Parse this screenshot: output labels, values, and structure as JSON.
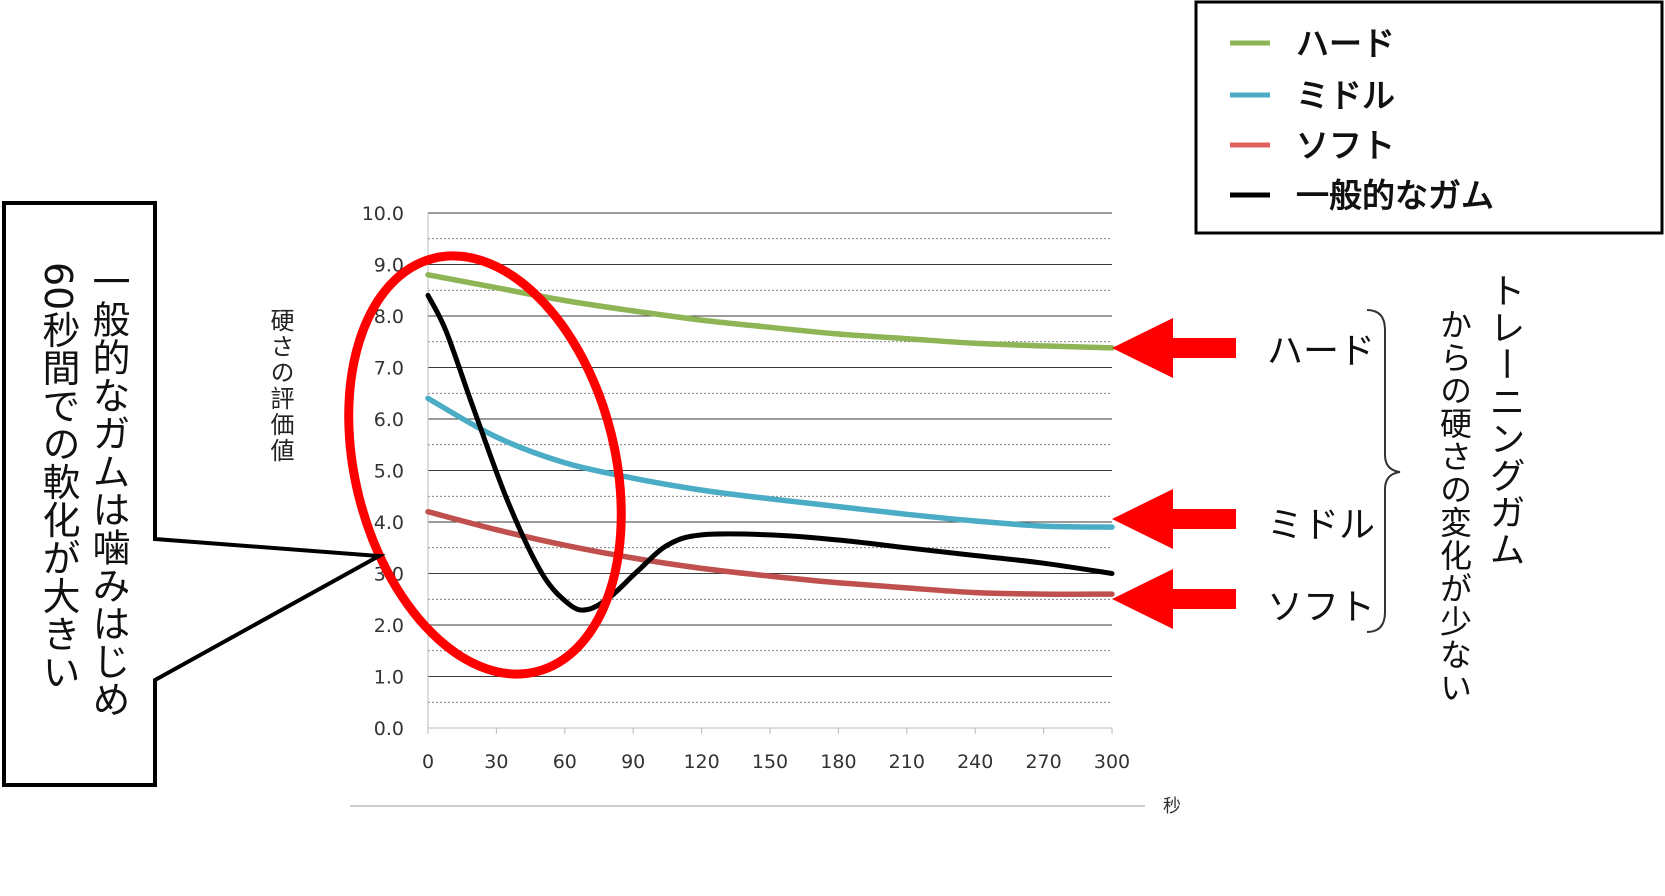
{
  "chart_data": {
    "type": "line",
    "xlabel": "秒",
    "ylabel": "硬さの評価値",
    "x": [
      0,
      30,
      60,
      90,
      120,
      150,
      180,
      210,
      240,
      270,
      300
    ],
    "xlim": [
      0,
      300
    ],
    "ylim": [
      0,
      10
    ],
    "y_ticks": [
      "0.0",
      "1.0",
      "2.0",
      "3.0",
      "4.0",
      "5.0",
      "6.0",
      "7.0",
      "8.0",
      "9.0",
      "10.0"
    ],
    "x_ticks": [
      "0",
      "30",
      "60",
      "90",
      "120",
      "150",
      "180",
      "210",
      "240",
      "270",
      "300"
    ],
    "grid": true,
    "legend_position": "top-right",
    "series": [
      {
        "name": "ハード",
        "color": "#8db555",
        "values": [
          8.8,
          8.55,
          8.3,
          8.1,
          7.92,
          7.78,
          7.65,
          7.56,
          7.47,
          7.42,
          7.38
        ]
      },
      {
        "name": "ミドル",
        "color": "#4bacc6",
        "values": [
          6.4,
          5.65,
          5.15,
          4.85,
          4.62,
          4.45,
          4.3,
          4.15,
          4.02,
          3.92,
          3.9
        ]
      },
      {
        "name": "ソフト",
        "color": "#c0504d",
        "values": [
          4.2,
          3.85,
          3.55,
          3.3,
          3.1,
          2.95,
          2.82,
          2.72,
          2.63,
          2.6,
          2.6
        ]
      },
      {
        "name": "一般的なガム",
        "color": "#000000",
        "points": [
          [
            0,
            8.4
          ],
          [
            8,
            7.7
          ],
          [
            20,
            6.2
          ],
          [
            35,
            4.4
          ],
          [
            50,
            3.0
          ],
          [
            62,
            2.4
          ],
          [
            70,
            2.3
          ],
          [
            80,
            2.55
          ],
          [
            92,
            3.05
          ],
          [
            105,
            3.55
          ],
          [
            120,
            3.75
          ],
          [
            150,
            3.75
          ],
          [
            180,
            3.65
          ],
          [
            210,
            3.5
          ],
          [
            240,
            3.35
          ],
          [
            270,
            3.2
          ],
          [
            300,
            3.0
          ]
        ]
      }
    ]
  },
  "legend": {
    "items": [
      "ハード",
      "ミドル",
      "ソフト",
      "一般的なガム"
    ]
  },
  "annotations": {
    "right_labels": [
      "ハード",
      "ミドル",
      "ソフト"
    ],
    "right_note": [
      "トレーニングガム",
      "からの硬さの変化が少ない"
    ],
    "left_callout": [
      "一般的なガムは噛みはじめ",
      "60秒間での軟化が大きい"
    ],
    "arrow_color": "#ff0000",
    "circle_color": "#ff0000"
  }
}
